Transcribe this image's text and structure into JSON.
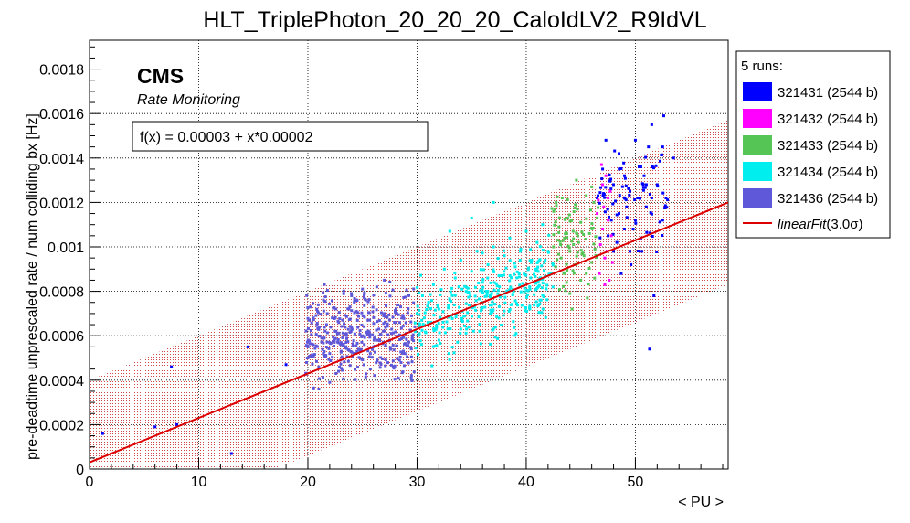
{
  "chart_data": {
    "type": "scatter",
    "title": "HLT_TriplePhoton_20_20_20_CaloIdLV2_R9IdVL",
    "xlabel": "< PU >",
    "ylabel": "pre-deadtime unprescaled rate / num colliding bx [Hz]",
    "xlim": [
      0,
      58.5
    ],
    "ylim": [
      0,
      0.00193
    ],
    "xticks": [
      0,
      10,
      20,
      30,
      40,
      50
    ],
    "xtick_labels": [
      "0",
      "10",
      "20",
      "30",
      "40",
      "50"
    ],
    "yticks": [
      0,
      0.0002,
      0.0004,
      0.0006,
      0.0008,
      0.001,
      0.0012,
      0.0014,
      0.0016,
      0.0018
    ],
    "ytick_labels": [
      "0",
      "0.0002",
      "0.0004",
      "0.0006",
      "0.0008",
      "0.001",
      "0.0012",
      "0.0014",
      "0.0016",
      "0.0018"
    ],
    "grid": true,
    "brand": "CMS",
    "subtitle": "Rate Monitoring",
    "fit_label": "f(x) = 0.00003 + x*0.00002",
    "fit": {
      "name": "linearFit",
      "intercept": 3e-05,
      "slope": 2e-05,
      "band_width": 0.00037,
      "color": "#dd0000"
    },
    "legend_title": "5 runs:",
    "legend_fit_label_main": "linearFit",
    "legend_fit_label_sigma": "(3.0σ)",
    "series": [
      {
        "name": "321431 (2544 b)",
        "color": "#0000ff",
        "points": [
          [
            1.2,
            0.00016
          ],
          [
            6,
            0.00019
          ],
          [
            7.5,
            0.00046
          ],
          [
            8,
            0.0002
          ],
          [
            13,
            7e-05
          ],
          [
            14.5,
            0.00055
          ],
          [
            18,
            0.00047
          ],
          [
            46.5,
            0.00122
          ],
          [
            47,
            0.00135
          ],
          [
            47.5,
            0.00105
          ],
          [
            48,
            0.00098
          ],
          [
            48,
            0.00128
          ],
          [
            48.5,
            0.00142
          ],
          [
            48.5,
            0.00115
          ],
          [
            49,
            0.00108
          ],
          [
            49,
            0.00132
          ],
          [
            49.5,
            0.00125
          ],
          [
            49.5,
            0.00098
          ],
          [
            50,
            0.00148
          ],
          [
            50,
            0.00112
          ],
          [
            50.5,
            0.00136
          ],
          [
            50.5,
            0.00104
          ],
          [
            51,
            0.00128
          ],
          [
            51,
            0.00118
          ],
          [
            51.5,
            0.00155
          ],
          [
            51.5,
            0.00122
          ],
          [
            52,
            0.00128
          ],
          [
            52.5,
            0.00145
          ],
          [
            52.5,
            0.00112
          ],
          [
            48.7,
            0.00088
          ],
          [
            49.2,
            0.00118
          ],
          [
            50.2,
            0.00122
          ],
          [
            47.8,
            0.00112
          ],
          [
            50.8,
            0.00132
          ],
          [
            49.8,
            0.00108
          ],
          [
            51.2,
            0.00145
          ],
          [
            51.3,
            0.00054
          ],
          [
            51.7,
            0.00078
          ],
          [
            52.6,
            0.00159
          ],
          [
            53.5,
            0.0014
          ],
          [
            47.3,
            0.00148
          ],
          [
            48.3,
            0.00102
          ],
          [
            49.6,
            0.00092
          ],
          [
            50.6,
            0.00098
          ]
        ],
        "cloud": {
          "x": [
            46.5,
            53
          ],
          "y": [
            0.00095,
            0.0015
          ],
          "count": 70,
          "seed": 11
        }
      },
      {
        "name": "321432 (2544 b)",
        "color": "#ff00ff",
        "points": [
          [
            46.5,
            0.00115
          ],
          [
            46.8,
            0.00101
          ],
          [
            47,
            0.00108
          ],
          [
            47,
            0.00128
          ],
          [
            47.2,
            0.00095
          ],
          [
            47.3,
            0.00132
          ],
          [
            47.5,
            0.00112
          ],
          [
            47.5,
            0.00122
          ],
          [
            47.6,
            0.00085
          ],
          [
            47.8,
            0.00105
          ],
          [
            46.7,
            0.00088
          ],
          [
            47.1,
            0.00118
          ],
          [
            47.4,
            0.00098
          ],
          [
            46.9,
            0.00137
          ],
          [
            47.7,
            0.00125
          ],
          [
            46.6,
            0.00121
          ],
          [
            47.9,
            0.00093
          ],
          [
            47.2,
            0.00083
          ]
        ]
      },
      {
        "name": "321433 (2544 b)",
        "color": "#55c555",
        "points": [
          [
            42.5,
            0.001
          ],
          [
            42.7,
            0.00091
          ],
          [
            43,
            0.00109
          ],
          [
            43.2,
            0.00095
          ],
          [
            43.5,
            0.00104
          ],
          [
            43.5,
            0.00088
          ],
          [
            43.8,
            0.00113
          ],
          [
            44,
            0.00098
          ],
          [
            44,
            0.00079
          ],
          [
            44.3,
            0.00107
          ],
          [
            44.5,
            0.00092
          ],
          [
            44.5,
            0.00119
          ],
          [
            44.8,
            0.00102
          ],
          [
            45,
            0.00085
          ],
          [
            45,
            0.00111
          ],
          [
            45.3,
            0.00096
          ],
          [
            45.5,
            0.00123
          ],
          [
            45.5,
            0.00088
          ],
          [
            45.8,
            0.00106
          ],
          [
            46,
            0.00093
          ],
          [
            46,
            0.00127
          ],
          [
            46.3,
            0.00099
          ],
          [
            46.5,
            0.00113
          ],
          [
            43.3,
            0.00122
          ],
          [
            44.2,
            0.00072
          ],
          [
            44.6,
            0.0013
          ],
          [
            45.6,
            0.00077
          ],
          [
            46.2,
            0.0012
          ],
          [
            43.7,
            0.00084
          ],
          [
            42.9,
            0.00103
          ]
        ],
        "cloud": {
          "x": [
            42.3,
            46.6
          ],
          "y": [
            0.00078,
            0.00128
          ],
          "count": 70,
          "seed": 23
        }
      },
      {
        "name": "321434 (2544 b)",
        "color": "#00eeee",
        "points": [
          [
            30,
            0.0007
          ],
          [
            30.5,
            0.00078
          ],
          [
            31,
            0.00066
          ],
          [
            31.5,
            0.00083
          ],
          [
            32,
            0.00072
          ],
          [
            32.5,
            0.0009
          ],
          [
            33,
            0.00076
          ],
          [
            33.5,
            0.00086
          ],
          [
            34,
            0.00094
          ],
          [
            34.5,
            0.0008
          ],
          [
            35,
            0.00089
          ],
          [
            35.5,
            0.00098
          ],
          [
            36,
            0.00084
          ],
          [
            36.5,
            0.00092
          ],
          [
            37,
            0.001
          ],
          [
            37.5,
            0.00087
          ],
          [
            38,
            0.00096
          ],
          [
            38.5,
            0.00104
          ],
          [
            39,
            0.00091
          ],
          [
            39.5,
            0.00099
          ],
          [
            40,
            0.00107
          ],
          [
            40.5,
            0.00094
          ],
          [
            41,
            0.00102
          ],
          [
            41.5,
            0.0011
          ],
          [
            42,
            0.00098
          ],
          [
            33,
            0.00107
          ],
          [
            35,
            0.00113
          ],
          [
            37,
            0.0012
          ],
          [
            32,
            0.00058
          ],
          [
            34,
            0.00063
          ],
          [
            36,
            0.00075
          ],
          [
            38,
            0.00079
          ]
        ],
        "cloud": {
          "x": [
            29.8,
            42.5
          ],
          "y": [
            0.00058,
            0.00115
          ],
          "count": 300,
          "seed": 37,
          "trend": true
        }
      },
      {
        "name": "321436 (2544 b)",
        "color": "#5f58d8",
        "points": [
          [
            20,
            0.0005
          ],
          [
            20.5,
            0.00056
          ],
          [
            21,
            0.00046
          ],
          [
            21.5,
            0.00059
          ],
          [
            22,
            0.00052
          ],
          [
            22.5,
            0.00062
          ],
          [
            23,
            0.00049
          ],
          [
            23.5,
            0.00057
          ],
          [
            24,
            0.00064
          ],
          [
            24.5,
            0.00053
          ],
          [
            25,
            0.0006
          ],
          [
            25.5,
            0.00067
          ],
          [
            26,
            0.00055
          ],
          [
            26.5,
            0.00063
          ],
          [
            27,
            0.0007
          ],
          [
            27.5,
            0.00058
          ],
          [
            28,
            0.00066
          ],
          [
            28.5,
            0.00073
          ],
          [
            29,
            0.00061
          ],
          [
            29.5,
            0.00069
          ],
          [
            21,
            0.00036
          ],
          [
            22,
            0.00039
          ],
          [
            24,
            0.00078
          ],
          [
            25,
            0.00081
          ],
          [
            27,
            0.00085
          ],
          [
            20.5,
            0.00068
          ]
        ],
        "cloud": {
          "x": [
            19.8,
            29.8
          ],
          "y": [
            0.00035,
            0.00085
          ],
          "count": 380,
          "seed": 53
        }
      }
    ]
  }
}
